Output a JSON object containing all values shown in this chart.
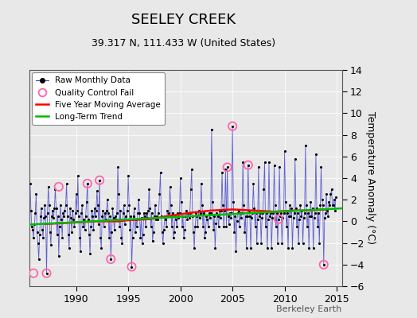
{
  "title": "SEELEY CREEK",
  "subtitle": "39.317 N, 111.433 W (United States)",
  "ylabel": "Temperature Anomaly (°C)",
  "watermark": "Berkeley Earth",
  "xlim": [
    1985.5,
    2015.5
  ],
  "ylim": [
    -6,
    14
  ],
  "yticks": [
    -6,
    -4,
    -2,
    0,
    2,
    4,
    6,
    8,
    10,
    12,
    14
  ],
  "xticks": [
    1990,
    1995,
    2000,
    2005,
    2010,
    2015
  ],
  "fig_bg": "#e8e8e8",
  "plot_bg": "#e8e8e8",
  "raw_line_color": "#4444cc",
  "raw_marker_color": "#000000",
  "qc_fail_color": "#ff66aa",
  "five_yr_color": "#ff0000",
  "trend_color": "#00bb00",
  "grid_color": "#ffffff",
  "raw_data": [
    [
      1985.583,
      3.5
    ],
    [
      1985.667,
      1.0
    ],
    [
      1985.75,
      -0.5
    ],
    [
      1985.833,
      -0.8
    ],
    [
      1985.917,
      -1.5
    ],
    [
      1986.0,
      -0.3
    ],
    [
      1986.083,
      0.8
    ],
    [
      1986.167,
      2.5
    ],
    [
      1986.25,
      -1.0
    ],
    [
      1986.333,
      -2.0
    ],
    [
      1986.417,
      -3.5
    ],
    [
      1986.5,
      -1.2
    ],
    [
      1986.583,
      0.5
    ],
    [
      1986.667,
      1.2
    ],
    [
      1986.75,
      -0.8
    ],
    [
      1986.833,
      -1.5
    ],
    [
      1986.917,
      0.3
    ],
    [
      1987.0,
      1.5
    ],
    [
      1987.083,
      0.5
    ],
    [
      1987.167,
      -4.8
    ],
    [
      1987.25,
      0.8
    ],
    [
      1987.333,
      3.2
    ],
    [
      1987.417,
      1.5
    ],
    [
      1987.5,
      -1.0
    ],
    [
      1987.583,
      -2.2
    ],
    [
      1987.667,
      0.5
    ],
    [
      1987.75,
      1.0
    ],
    [
      1987.833,
      0.3
    ],
    [
      1987.917,
      1.2
    ],
    [
      1988.0,
      3.0
    ],
    [
      1988.083,
      1.2
    ],
    [
      1988.167,
      -1.2
    ],
    [
      1988.25,
      0.5
    ],
    [
      1988.333,
      -3.2
    ],
    [
      1988.417,
      -0.5
    ],
    [
      1988.5,
      1.5
    ],
    [
      1988.583,
      0.2
    ],
    [
      1988.667,
      -1.5
    ],
    [
      1988.75,
      0.8
    ],
    [
      1988.833,
      0.5
    ],
    [
      1988.917,
      1.0
    ],
    [
      1989.0,
      1.5
    ],
    [
      1989.083,
      3.5
    ],
    [
      1989.167,
      0.5
    ],
    [
      1989.25,
      -1.2
    ],
    [
      1989.333,
      -2.5
    ],
    [
      1989.417,
      1.2
    ],
    [
      1989.5,
      0.3
    ],
    [
      1989.583,
      -1.0
    ],
    [
      1989.667,
      1.0
    ],
    [
      1989.75,
      0.2
    ],
    [
      1989.833,
      -0.5
    ],
    [
      1989.917,
      0.8
    ],
    [
      1990.0,
      2.5
    ],
    [
      1990.083,
      1.0
    ],
    [
      1990.167,
      4.2
    ],
    [
      1990.25,
      0.5
    ],
    [
      1990.333,
      -1.5
    ],
    [
      1990.417,
      -2.8
    ],
    [
      1990.5,
      0.8
    ],
    [
      1990.583,
      1.5
    ],
    [
      1990.667,
      -0.5
    ],
    [
      1990.75,
      0.2
    ],
    [
      1990.833,
      -0.8
    ],
    [
      1990.917,
      0.5
    ],
    [
      1991.0,
      1.8
    ],
    [
      1991.083,
      3.5
    ],
    [
      1991.167,
      0.2
    ],
    [
      1991.25,
      -1.2
    ],
    [
      1991.333,
      -3.0
    ],
    [
      1991.417,
      -0.5
    ],
    [
      1991.5,
      1.0
    ],
    [
      1991.583,
      0.5
    ],
    [
      1991.667,
      -0.8
    ],
    [
      1991.75,
      1.2
    ],
    [
      1991.833,
      0.5
    ],
    [
      1991.917,
      1.0
    ],
    [
      1992.0,
      2.8
    ],
    [
      1992.083,
      1.5
    ],
    [
      1992.167,
      -0.3
    ],
    [
      1992.25,
      3.8
    ],
    [
      1992.333,
      -1.5
    ],
    [
      1992.417,
      -2.5
    ],
    [
      1992.5,
      0.5
    ],
    [
      1992.583,
      1.0
    ],
    [
      1992.667,
      -0.5
    ],
    [
      1992.75,
      0.8
    ],
    [
      1992.833,
      0.2
    ],
    [
      1992.917,
      1.0
    ],
    [
      1993.0,
      2.0
    ],
    [
      1993.083,
      0.8
    ],
    [
      1993.167,
      -1.5
    ],
    [
      1993.25,
      0.5
    ],
    [
      1993.333,
      -3.5
    ],
    [
      1993.417,
      -1.0
    ],
    [
      1993.5,
      1.2
    ],
    [
      1993.583,
      0.3
    ],
    [
      1993.667,
      -0.8
    ],
    [
      1993.75,
      0.5
    ],
    [
      1993.833,
      0.2
    ],
    [
      1993.917,
      0.8
    ],
    [
      1994.0,
      5.0
    ],
    [
      1994.083,
      2.5
    ],
    [
      1994.167,
      -0.5
    ],
    [
      1994.25,
      1.0
    ],
    [
      1994.333,
      -1.5
    ],
    [
      1994.417,
      -2.0
    ],
    [
      1994.5,
      0.8
    ],
    [
      1994.583,
      1.5
    ],
    [
      1994.667,
      -0.3
    ],
    [
      1994.75,
      0.5
    ],
    [
      1994.833,
      0.2
    ],
    [
      1994.917,
      1.0
    ],
    [
      1995.0,
      4.2
    ],
    [
      1995.083,
      1.5
    ],
    [
      1995.167,
      -0.8
    ],
    [
      1995.25,
      0.5
    ],
    [
      1995.333,
      -4.2
    ],
    [
      1995.417,
      -1.5
    ],
    [
      1995.5,
      0.5
    ],
    [
      1995.583,
      1.2
    ],
    [
      1995.667,
      -1.0
    ],
    [
      1995.75,
      0.2
    ],
    [
      1995.833,
      -0.5
    ],
    [
      1995.917,
      0.8
    ],
    [
      1996.0,
      2.0
    ],
    [
      1996.083,
      0.8
    ],
    [
      1996.167,
      -1.5
    ],
    [
      1996.25,
      0.3
    ],
    [
      1996.333,
      -2.0
    ],
    [
      1996.417,
      -1.2
    ],
    [
      1996.5,
      0.8
    ],
    [
      1996.583,
      0.5
    ],
    [
      1996.667,
      -0.5
    ],
    [
      1996.75,
      0.8
    ],
    [
      1996.833,
      0.3
    ],
    [
      1996.917,
      1.0
    ],
    [
      1997.0,
      3.0
    ],
    [
      1997.083,
      1.2
    ],
    [
      1997.167,
      -0.5
    ],
    [
      1997.25,
      0.8
    ],
    [
      1997.333,
      -1.8
    ],
    [
      1997.417,
      -1.0
    ],
    [
      1997.5,
      0.5
    ],
    [
      1997.583,
      1.5
    ],
    [
      1997.667,
      0.2
    ],
    [
      1997.75,
      0.5
    ],
    [
      1997.833,
      0.2
    ],
    [
      1997.917,
      0.8
    ],
    [
      1998.0,
      2.5
    ],
    [
      1998.083,
      4.5
    ],
    [
      1998.167,
      0.5
    ],
    [
      1998.25,
      -1.0
    ],
    [
      1998.333,
      -2.0
    ],
    [
      1998.417,
      -0.8
    ],
    [
      1998.5,
      0.5
    ],
    [
      1998.583,
      0.2
    ],
    [
      1998.667,
      -0.5
    ],
    [
      1998.75,
      1.0
    ],
    [
      1998.833,
      0.5
    ],
    [
      1998.917,
      0.8
    ],
    [
      1999.0,
      3.2
    ],
    [
      1999.083,
      1.5
    ],
    [
      1999.167,
      -0.5
    ],
    [
      1999.25,
      0.8
    ],
    [
      1999.333,
      -1.5
    ],
    [
      1999.417,
      -1.0
    ],
    [
      1999.5,
      0.5
    ],
    [
      1999.583,
      0.2
    ],
    [
      1999.667,
      -0.5
    ],
    [
      1999.75,
      0.8
    ],
    [
      1999.833,
      0.3
    ],
    [
      1999.917,
      0.8
    ],
    [
      2000.0,
      4.0
    ],
    [
      2000.083,
      1.8
    ],
    [
      2000.167,
      -0.5
    ],
    [
      2000.25,
      0.5
    ],
    [
      2000.333,
      -1.5
    ],
    [
      2000.417,
      -0.8
    ],
    [
      2000.5,
      0.5
    ],
    [
      2000.583,
      1.0
    ],
    [
      2000.667,
      0.2
    ],
    [
      2000.75,
      0.8
    ],
    [
      2000.833,
      0.3
    ],
    [
      2000.917,
      0.8
    ],
    [
      2001.0,
      3.0
    ],
    [
      2001.083,
      4.8
    ],
    [
      2001.167,
      0.5
    ],
    [
      2001.25,
      -1.0
    ],
    [
      2001.333,
      -2.5
    ],
    [
      2001.417,
      -0.5
    ],
    [
      2001.5,
      0.8
    ],
    [
      2001.583,
      0.5
    ],
    [
      2001.667,
      -0.5
    ],
    [
      2001.75,
      1.0
    ],
    [
      2001.833,
      0.3
    ],
    [
      2001.917,
      0.8
    ],
    [
      2002.0,
      3.5
    ],
    [
      2002.083,
      1.5
    ],
    [
      2002.167,
      -0.5
    ],
    [
      2002.25,
      0.8
    ],
    [
      2002.333,
      -1.5
    ],
    [
      2002.417,
      -1.0
    ],
    [
      2002.5,
      0.5
    ],
    [
      2002.583,
      0.2
    ],
    [
      2002.667,
      -0.5
    ],
    [
      2002.75,
      0.8
    ],
    [
      2002.833,
      0.3
    ],
    [
      2002.917,
      0.8
    ],
    [
      2003.0,
      8.5
    ],
    [
      2003.083,
      1.8
    ],
    [
      2003.167,
      -0.8
    ],
    [
      2003.25,
      0.5
    ],
    [
      2003.333,
      -2.5
    ],
    [
      2003.417,
      -0.2
    ],
    [
      2003.5,
      0.8
    ],
    [
      2003.583,
      0.5
    ],
    [
      2003.667,
      -0.5
    ],
    [
      2003.75,
      1.0
    ],
    [
      2003.833,
      0.3
    ],
    [
      2003.917,
      1.0
    ],
    [
      2004.0,
      4.5
    ],
    [
      2004.083,
      1.5
    ],
    [
      2004.167,
      -0.5
    ],
    [
      2004.25,
      1.0
    ],
    [
      2004.333,
      4.8
    ],
    [
      2004.417,
      -0.5
    ],
    [
      2004.5,
      5.0
    ],
    [
      2004.583,
      0.5
    ],
    [
      2004.667,
      -0.3
    ],
    [
      2004.75,
      0.8
    ],
    [
      2004.833,
      0.3
    ],
    [
      2004.917,
      0.8
    ],
    [
      2005.0,
      8.8
    ],
    [
      2005.083,
      1.8
    ],
    [
      2005.167,
      -1.0
    ],
    [
      2005.25,
      0.5
    ],
    [
      2005.333,
      -2.8
    ],
    [
      2005.417,
      0.0
    ],
    [
      2005.5,
      0.8
    ],
    [
      2005.583,
      1.0
    ],
    [
      2005.667,
      -0.5
    ],
    [
      2005.75,
      0.8
    ],
    [
      2005.833,
      0.3
    ],
    [
      2005.917,
      0.8
    ],
    [
      2006.0,
      5.5
    ],
    [
      2006.083,
      1.5
    ],
    [
      2006.167,
      -1.0
    ],
    [
      2006.25,
      0.5
    ],
    [
      2006.333,
      -2.5
    ],
    [
      2006.417,
      0.5
    ],
    [
      2006.5,
      5.2
    ],
    [
      2006.583,
      1.0
    ],
    [
      2006.667,
      0.5
    ],
    [
      2006.75,
      -2.5
    ],
    [
      2006.833,
      0.3
    ],
    [
      2006.917,
      0.8
    ],
    [
      2007.0,
      3.5
    ],
    [
      2007.083,
      1.2
    ],
    [
      2007.167,
      -0.5
    ],
    [
      2007.25,
      0.8
    ],
    [
      2007.333,
      -2.0
    ],
    [
      2007.417,
      0.2
    ],
    [
      2007.5,
      5.0
    ],
    [
      2007.583,
      0.5
    ],
    [
      2007.667,
      0.8
    ],
    [
      2007.75,
      -2.0
    ],
    [
      2007.833,
      0.3
    ],
    [
      2007.917,
      0.8
    ],
    [
      2008.0,
      3.0
    ],
    [
      2008.083,
      5.5
    ],
    [
      2008.167,
      -0.5
    ],
    [
      2008.25,
      0.8
    ],
    [
      2008.333,
      -2.5
    ],
    [
      2008.417,
      0.2
    ],
    [
      2008.5,
      5.5
    ],
    [
      2008.583,
      0.5
    ],
    [
      2008.667,
      0.8
    ],
    [
      2008.75,
      -2.5
    ],
    [
      2008.833,
      0.3
    ],
    [
      2008.917,
      0.8
    ],
    [
      2009.0,
      5.2
    ],
    [
      2009.083,
      1.5
    ],
    [
      2009.167,
      -0.5
    ],
    [
      2009.25,
      0.8
    ],
    [
      2009.333,
      -2.0
    ],
    [
      2009.417,
      0.2
    ],
    [
      2009.5,
      5.0
    ],
    [
      2009.583,
      0.5
    ],
    [
      2009.667,
      0.8
    ],
    [
      2009.75,
      -2.0
    ],
    [
      2009.833,
      0.3
    ],
    [
      2009.917,
      0.8
    ],
    [
      2010.0,
      6.5
    ],
    [
      2010.083,
      1.8
    ],
    [
      2010.167,
      -0.5
    ],
    [
      2010.25,
      0.8
    ],
    [
      2010.333,
      -2.5
    ],
    [
      2010.417,
      0.5
    ],
    [
      2010.5,
      1.5
    ],
    [
      2010.583,
      0.5
    ],
    [
      2010.667,
      1.2
    ],
    [
      2010.75,
      -2.5
    ],
    [
      2010.833,
      0.3
    ],
    [
      2010.917,
      0.8
    ],
    [
      2011.0,
      5.8
    ],
    [
      2011.083,
      1.2
    ],
    [
      2011.167,
      -0.5
    ],
    [
      2011.25,
      0.8
    ],
    [
      2011.333,
      -2.0
    ],
    [
      2011.417,
      0.2
    ],
    [
      2011.5,
      1.5
    ],
    [
      2011.583,
      0.5
    ],
    [
      2011.667,
      1.0
    ],
    [
      2011.75,
      -2.0
    ],
    [
      2011.833,
      0.3
    ],
    [
      2011.917,
      0.8
    ],
    [
      2012.0,
      7.0
    ],
    [
      2012.083,
      1.5
    ],
    [
      2012.167,
      -0.5
    ],
    [
      2012.25,
      0.8
    ],
    [
      2012.333,
      -2.5
    ],
    [
      2012.417,
      0.5
    ],
    [
      2012.5,
      1.8
    ],
    [
      2012.583,
      0.5
    ],
    [
      2012.667,
      1.2
    ],
    [
      2012.75,
      -2.5
    ],
    [
      2012.833,
      0.3
    ],
    [
      2012.917,
      0.8
    ],
    [
      2013.0,
      6.2
    ],
    [
      2013.083,
      1.2
    ],
    [
      2013.167,
      -0.5
    ],
    [
      2013.25,
      0.8
    ],
    [
      2013.333,
      -2.0
    ],
    [
      2013.417,
      1.5
    ],
    [
      2013.5,
      5.0
    ],
    [
      2013.583,
      2.0
    ],
    [
      2013.667,
      1.5
    ],
    [
      2013.75,
      -4.0
    ],
    [
      2013.833,
      0.3
    ],
    [
      2013.917,
      0.8
    ],
    [
      2014.0,
      2.5
    ],
    [
      2014.083,
      1.0
    ],
    [
      2014.167,
      0.5
    ],
    [
      2014.25,
      1.8
    ],
    [
      2014.333,
      1.5
    ],
    [
      2014.417,
      2.5
    ],
    [
      2014.5,
      3.0
    ],
    [
      2014.583,
      1.5
    ],
    [
      2014.667,
      1.5
    ],
    [
      2014.75,
      2.0
    ],
    [
      2014.833,
      1.0
    ],
    [
      2014.917,
      2.2
    ]
  ],
  "qc_fail_points": [
    [
      1985.917,
      -4.8
    ],
    [
      1987.167,
      -4.8
    ],
    [
      1988.333,
      3.2
    ],
    [
      1991.083,
      3.5
    ],
    [
      1992.25,
      3.8
    ],
    [
      1993.333,
      -3.5
    ],
    [
      1995.333,
      -4.2
    ],
    [
      2004.5,
      5.0
    ],
    [
      2005.0,
      8.8
    ],
    [
      2006.5,
      5.2
    ],
    [
      2009.417,
      0.2
    ],
    [
      2013.75,
      -4.0
    ]
  ],
  "five_yr_avg_x": [
    1987.0,
    1988.0,
    1989.0,
    1990.0,
    1991.0,
    1992.0,
    1993.0,
    1994.0,
    1995.0,
    1996.0,
    1997.0,
    1998.0,
    1999.0,
    2000.0,
    2001.0,
    2002.0,
    2003.0,
    2004.0,
    2005.0,
    2006.0,
    2007.0,
    2008.0,
    2009.0,
    2010.0,
    2011.0,
    2012.0,
    2013.0,
    2014.0
  ],
  "five_yr_avg_y": [
    -0.25,
    -0.2,
    -0.15,
    -0.1,
    -0.05,
    0.0,
    0.0,
    0.0,
    0.1,
    0.15,
    0.2,
    0.35,
    0.5,
    0.65,
    0.8,
    0.9,
    1.0,
    1.05,
    1.1,
    1.05,
    1.0,
    0.95,
    0.9,
    0.95,
    1.0,
    1.0,
    1.05,
    1.1
  ],
  "trend_x": [
    1985.5,
    2015.5
  ],
  "trend_y": [
    -0.3,
    1.2
  ],
  "title_fontsize": 13,
  "subtitle_fontsize": 9,
  "tick_fontsize": 9,
  "ylabel_fontsize": 9
}
